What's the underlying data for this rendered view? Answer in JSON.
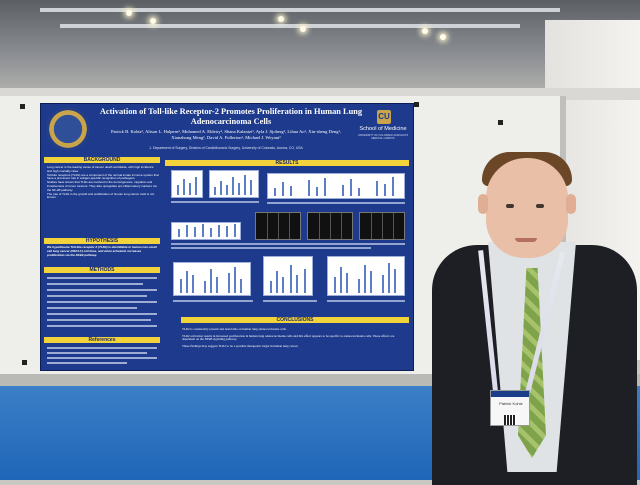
{
  "poster": {
    "title": "Activation of Toll-like Receptor-2 Promotes Proliferation in Human Lung Adenocarcinoma Cells",
    "authors": "Patrick B. Kohtz¹, Alison L. Halpern¹, Mohamed A. Eldeiry¹, Shana Kalantzi¹, Ayla J. Sjoberg¹, Lihua Ao¹, Xin-sheng Deng¹, Xianzhong Meng¹, David A. Fullerton¹, Michael J. Weyant¹",
    "affiliation": "1. Department of Surgery, Division of Cardiothoracic Surgery, University of Colorado, Aurora, CO, USA",
    "school_logo_text": "CU",
    "school_name": "School of Medicine",
    "school_sub": "UNIVERSITY OF COLORADO ANSCHUTZ MEDICAL CAMPUS",
    "sections": {
      "background": "BACKGROUND",
      "hypothesis": "HYPOTHESIS",
      "methods": "METHODS",
      "references": "References",
      "results": "RESULTS",
      "conclusions": "CONCLUSIONS"
    },
    "background_points": [
      "Lung cancer is the leading cause of cancer death worldwide, with high incidence and high mortality rates.",
      "Toll-like receptors (TLRs) are a component of the normal innate immune system that have a prominent role in antigen-specific recognition of pathogens.",
      "Studies have shown that TLRs are involved in the tumorigenesis, migration and invasiveness of tumor cancers. They also upregulate pro-inflammatory markers via the NF-kB pathway.",
      "The role of TLRs in the growth and proliferation of human lung cancer cells is not known."
    ],
    "hypothesis_text": "We hypothesize Toll-like receptor-2 (TLR2) is identifiable in human non-small cell lung cancer (NSCLC) cell lines, and when activated, increases proliferation via the NFkB pathway.",
    "conclusions": [
      "TLR2 is consistently present and detectable on human lung adenocarcinoma cells.",
      "TLR2 activation results in increased proliferation in human lung adenocarcinoma cells and this effect appears to be specific to adenocarcinoma cells. These effects are dependent on the NFkB signaling pathway.",
      "These findings may suggest TLR2 to be a possible therapeutic target in human lung cancer."
    ]
  },
  "badge": {
    "name": "Patrick Kohtz"
  },
  "colors": {
    "poster_blue": "#1d3a8c",
    "section_yellow": "#f2d33c",
    "floor_blue": "#1f66b8"
  }
}
